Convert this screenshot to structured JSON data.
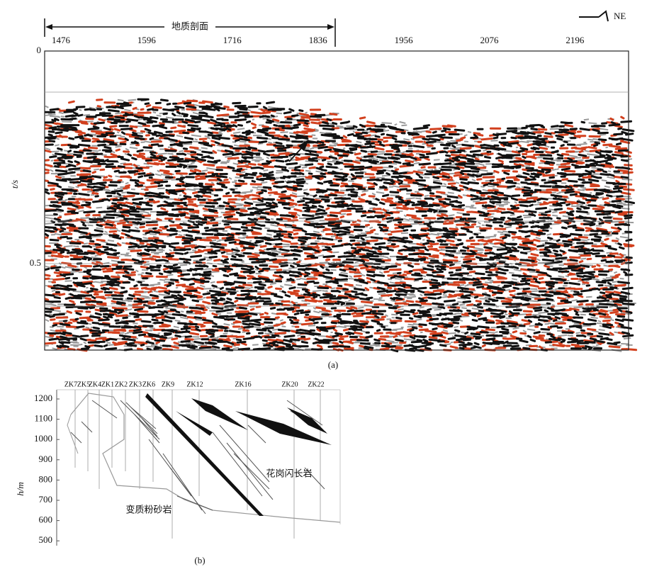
{
  "panel_a": {
    "section_label": "地质剖面",
    "direction": "NE",
    "top_ticks": [
      "1476",
      "1596",
      "1716",
      "1836",
      "1956",
      "2076",
      "2196"
    ],
    "y_label": "t/s",
    "y_ticks": [
      "0",
      "0.5"
    ],
    "caption": "(a)"
  },
  "panel_b": {
    "boreholes": [
      "ZK7",
      "ZK5",
      "ZK4",
      "ZK1",
      "ZK2",
      "ZK3",
      "ZK6",
      "ZK9",
      "ZK12",
      "ZK16",
      "ZK20",
      "ZK22"
    ],
    "y_label": "h/m",
    "y_ticks": [
      "1200",
      "1100",
      "1000",
      "900",
      "800",
      "700",
      "600",
      "500"
    ],
    "rock_upper": "花岗闪长岩",
    "rock_lower": "变质粉砂岩",
    "caption": "(b)"
  }
}
